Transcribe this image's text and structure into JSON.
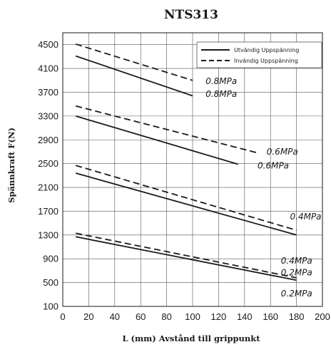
{
  "chart_data": {
    "type": "line",
    "title": "NTS313",
    "xlabel": "L (mm) Avstånd till grippunkt",
    "ylabel": "Spännkraft F(N)",
    "xlim": [
      0,
      200
    ],
    "ylim": [
      100,
      4700
    ],
    "x_ticks": [
      0,
      20,
      40,
      60,
      80,
      100,
      120,
      140,
      160,
      180,
      200
    ],
    "y_ticks": [
      100,
      500,
      900,
      1300,
      1700,
      2100,
      2500,
      2900,
      3300,
      3700,
      4100,
      4500
    ],
    "grid": true,
    "legend_position": "top-right",
    "legend": [
      {
        "label": "Utvändig Uppspänning",
        "style": "solid"
      },
      {
        "label": "Invändig Uppspänning",
        "style": "dashed"
      }
    ],
    "series": [
      {
        "group": "Utvändig Uppspänning",
        "style": "solid",
        "x": [
          10,
          100
        ],
        "y": [
          4310,
          3640
        ]
      },
      {
        "group": "Invändig Uppspänning",
        "style": "dashed",
        "x": [
          10,
          100
        ],
        "y": [
          4510,
          3900
        ]
      },
      {
        "group": "Utvändig Uppspänning",
        "style": "solid",
        "x": [
          10,
          135
        ],
        "y": [
          3300,
          2490
        ]
      },
      {
        "group": "Invändig Uppspänning",
        "style": "dashed",
        "x": [
          10,
          150
        ],
        "y": [
          3470,
          2680
        ]
      },
      {
        "group": "Utvändig Uppspänning",
        "style": "solid",
        "x": [
          10,
          180
        ],
        "y": [
          2340,
          1300
        ]
      },
      {
        "group": "Invändig Uppspänning",
        "style": "dashed",
        "x": [
          10,
          180
        ],
        "y": [
          2470,
          1380
        ]
      },
      {
        "group": "Utvändig Uppspänning",
        "style": "solid",
        "x": [
          10,
          180
        ],
        "y": [
          1270,
          540
        ]
      },
      {
        "group": "Invändig Uppspänning",
        "style": "dashed",
        "x": [
          10,
          180
        ],
        "y": [
          1330,
          580
        ]
      }
    ],
    "annotations": [
      {
        "text": "0.8MPa",
        "x": 110,
        "y": 3840
      },
      {
        "text": "0.8MPa",
        "x": 110,
        "y": 3620
      },
      {
        "text": "0.6MPa",
        "x": 157,
        "y": 2650
      },
      {
        "text": "0.6MPa",
        "x": 150,
        "y": 2420
      },
      {
        "text": "0.4MPa",
        "x": 175,
        "y": 1560
      },
      {
        "text": "0.4MPa",
        "x": 168,
        "y": 820
      },
      {
        "text": "0.2MPa",
        "x": 168,
        "y": 620
      },
      {
        "text": "0.2MPa",
        "x": 168,
        "y": 270
      }
    ]
  },
  "colors": {
    "line": "#1a1a1a",
    "grid": "#555555",
    "background": "#ffffff"
  }
}
